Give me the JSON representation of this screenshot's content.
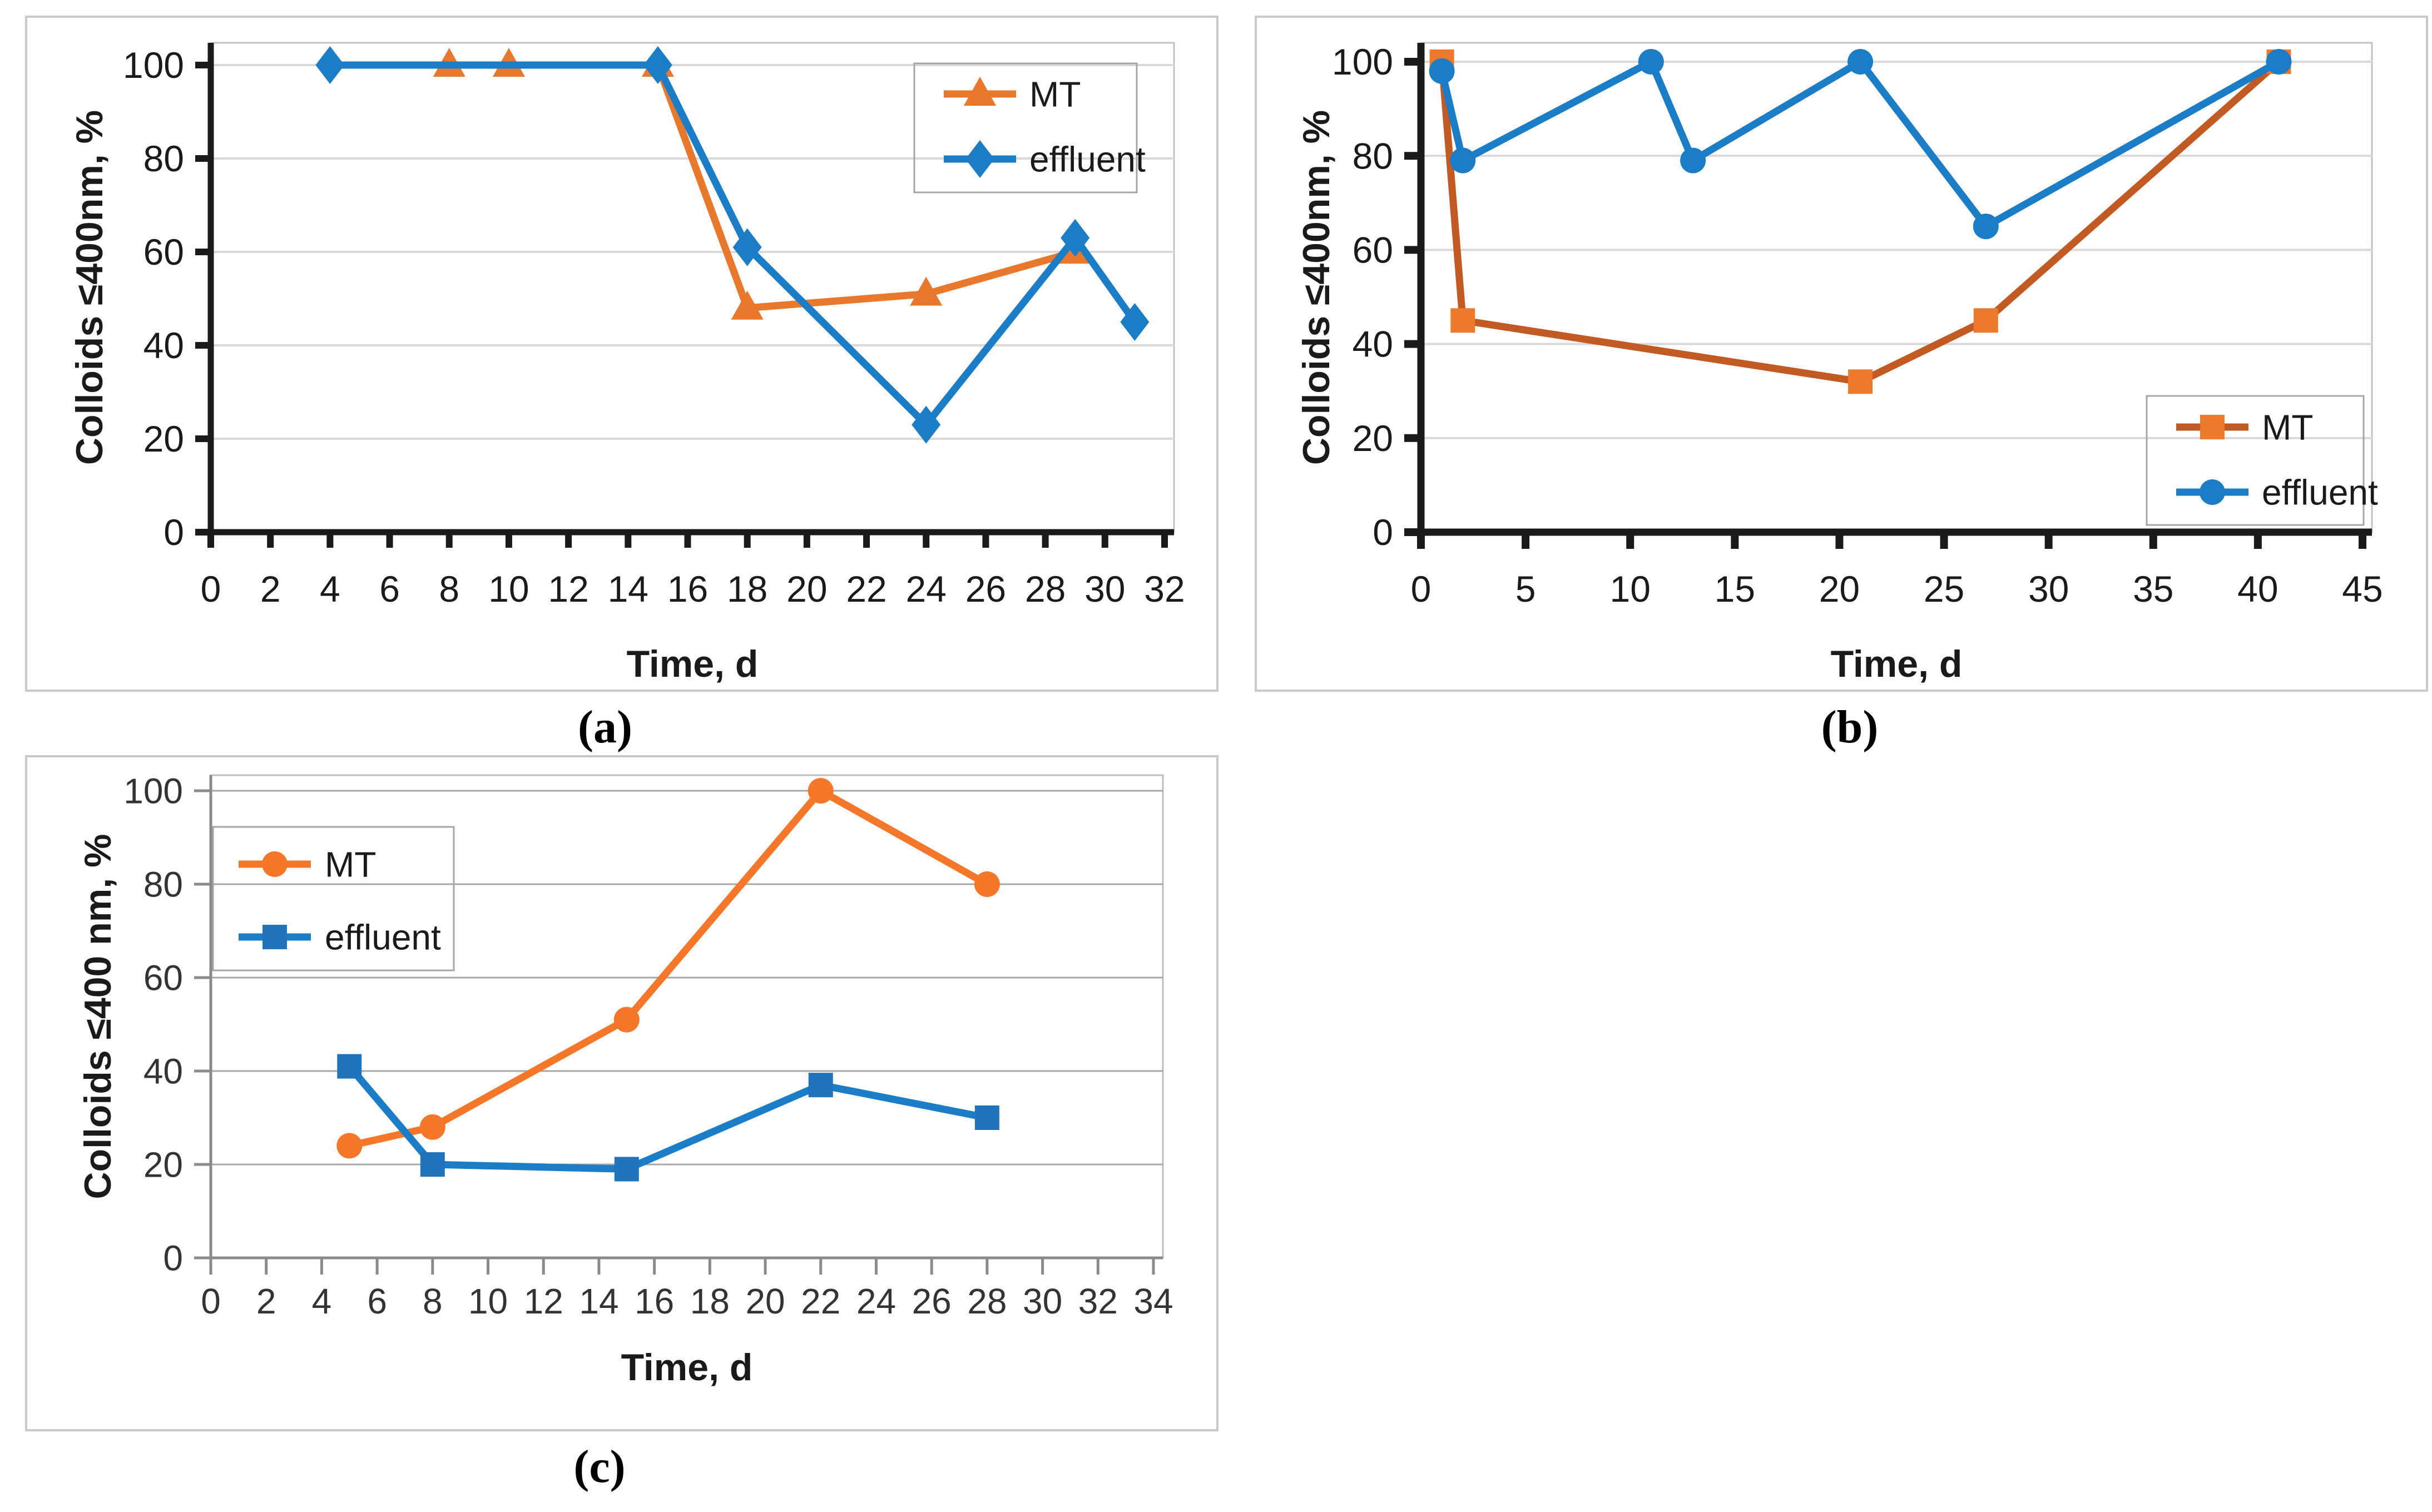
{
  "figure": {
    "background": "#FFFFFF",
    "panel_border_color": "#C9C9C9",
    "captions": {
      "a": "(a)",
      "b": "(b)",
      "c": "(c)"
    }
  },
  "chart_data": [
    {
      "id": "a",
      "type": "line",
      "caption": "(a)",
      "title": "",
      "xlabel": "Time, d",
      "ylabel": "Colloids ≤400nm, %",
      "xlim": [
        0,
        32
      ],
      "ylim": [
        0,
        100
      ],
      "x_ticks": [
        0,
        2,
        4,
        6,
        8,
        10,
        12,
        14,
        16,
        18,
        20,
        22,
        24,
        26,
        28,
        30,
        32
      ],
      "y_ticks": [
        0,
        20,
        40,
        60,
        80,
        100
      ],
      "grid": "horizontal",
      "legend_position": "top-right",
      "series": [
        {
          "name": "MT",
          "marker": "triangle",
          "line_color": "#E8782B",
          "marker_color": "#E8782B",
          "x": [
            8,
            10,
            15,
            18,
            24,
            29
          ],
          "y": [
            100,
            100,
            100,
            48,
            51,
            60
          ]
        },
        {
          "name": "effluent",
          "marker": "diamond",
          "line_color": "#1C7DC7",
          "marker_color": "#1C7DC7",
          "x": [
            4,
            15,
            18,
            24,
            29,
            31
          ],
          "y": [
            100,
            100,
            61,
            23,
            63,
            45
          ]
        }
      ]
    },
    {
      "id": "b",
      "type": "line",
      "caption": "(b)",
      "title": "",
      "xlabel": "Time, d",
      "ylabel": "Colloids ≤400nm, %",
      "xlim": [
        0,
        45
      ],
      "ylim": [
        0,
        100
      ],
      "x_ticks": [
        0,
        5,
        10,
        15,
        20,
        25,
        30,
        35,
        40,
        45
      ],
      "y_ticks": [
        0,
        20,
        40,
        60,
        80,
        100
      ],
      "grid": "horizontal",
      "legend_position": "bottom-right",
      "series": [
        {
          "name": "MT",
          "marker": "square",
          "line_color": "#C25A24",
          "marker_color": "#ED7A2C",
          "x": [
            1,
            2,
            21,
            27,
            41
          ],
          "y": [
            100,
            45,
            32,
            45,
            100
          ]
        },
        {
          "name": "effluent",
          "marker": "circle",
          "line_color": "#1C7DC7",
          "marker_color": "#1C7DC7",
          "x": [
            1,
            2,
            11,
            13,
            21,
            27,
            41
          ],
          "y": [
            98,
            79,
            100,
            79,
            100,
            65,
            100
          ]
        }
      ]
    },
    {
      "id": "c",
      "type": "line",
      "caption": "(c)",
      "title": "",
      "xlabel": "Time, d",
      "ylabel": "Colloids ≤400 nm, %",
      "xlim": [
        0,
        34
      ],
      "ylim": [
        0,
        100
      ],
      "x_ticks": [
        0,
        2,
        4,
        6,
        8,
        10,
        12,
        14,
        16,
        18,
        20,
        22,
        24,
        26,
        28,
        30,
        32,
        34
      ],
      "y_ticks": [
        0,
        20,
        40,
        60,
        80,
        100
      ],
      "grid": "horizontal",
      "legend_position": "top-left",
      "series": [
        {
          "name": "MT",
          "marker": "circle",
          "line_color": "#F5772A",
          "marker_color": "#F5772A",
          "x": [
            5,
            8,
            15,
            22,
            28
          ],
          "y": [
            24,
            28,
            51,
            100,
            80
          ]
        },
        {
          "name": "effluent",
          "marker": "square",
          "line_color": "#1C7DC7",
          "marker_color": "#2173BC",
          "x": [
            5,
            8,
            15,
            22,
            28
          ],
          "y": [
            41,
            20,
            19,
            37,
            30
          ]
        }
      ]
    }
  ]
}
